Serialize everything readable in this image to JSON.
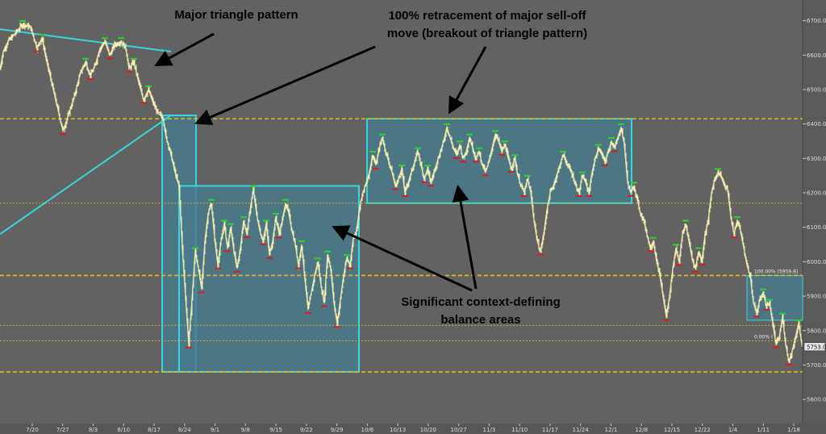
{
  "chart_data": {
    "type": "bar",
    "style": "ohlc-price-chart",
    "title": "",
    "xlabel": "",
    "ylabel": "",
    "ylim": [
      5530,
      6760
    ],
    "y_ticks": [
      5600,
      5700,
      5800,
      5900,
      6000,
      6100,
      6200,
      6300,
      6400,
      6500,
      6600,
      6700
    ],
    "y_tick_labels": [
      "5600.0",
      "5700.0",
      "5800.0",
      "5900.0",
      "6000.0",
      "6100.0",
      "6200.0",
      "6300.0",
      "6400.0",
      "6500.0",
      "6600.0",
      "6700.0"
    ],
    "x_tick_labels": [
      "7/20",
      "7/27",
      "8/3",
      "8/10",
      "8/17",
      "8/24",
      "9/1",
      "9/8",
      "9/15",
      "9/22",
      "9/29",
      "10/6",
      "10/13",
      "10/20",
      "10/27",
      "11/3",
      "11/10",
      "11/17",
      "11/24",
      "12/1",
      "12/8",
      "12/15",
      "12/22",
      "1/4",
      "1/11",
      "1/18"
    ],
    "price_path": [
      [
        0,
        6560
      ],
      [
        4,
        6610
      ],
      [
        10,
        6640
      ],
      [
        18,
        6660
      ],
      [
        28,
        6690
      ],
      [
        38,
        6680
      ],
      [
        46,
        6620
      ],
      [
        52,
        6650
      ],
      [
        58,
        6580
      ],
      [
        64,
        6520
      ],
      [
        70,
        6460
      ],
      [
        78,
        6380
      ],
      [
        84,
        6420
      ],
      [
        92,
        6480
      ],
      [
        100,
        6550
      ],
      [
        106,
        6580
      ],
      [
        112,
        6540
      ],
      [
        118,
        6570
      ],
      [
        124,
        6620
      ],
      [
        130,
        6640
      ],
      [
        136,
        6600
      ],
      [
        142,
        6630
      ],
      [
        150,
        6640
      ],
      [
        156,
        6620
      ],
      [
        160,
        6560
      ],
      [
        166,
        6580
      ],
      [
        172,
        6520
      ],
      [
        178,
        6470
      ],
      [
        184,
        6500
      ],
      [
        190,
        6460
      ],
      [
        196,
        6430
      ],
      [
        202,
        6420
      ],
      [
        206,
        6360
      ],
      [
        210,
        6330
      ],
      [
        214,
        6290
      ],
      [
        218,
        6250
      ],
      [
        222,
        6220
      ],
      [
        226,
        6040
      ],
      [
        230,
        5900
      ],
      [
        234,
        5760
      ],
      [
        238,
        5890
      ],
      [
        242,
        6030
      ],
      [
        246,
        5980
      ],
      [
        250,
        5920
      ],
      [
        254,
        6060
      ],
      [
        258,
        6140
      ],
      [
        262,
        6170
      ],
      [
        266,
        6070
      ],
      [
        270,
        5990
      ],
      [
        274,
        6060
      ],
      [
        278,
        6110
      ],
      [
        282,
        6040
      ],
      [
        286,
        6100
      ],
      [
        290,
        6030
      ],
      [
        294,
        5980
      ],
      [
        298,
        6040
      ],
      [
        302,
        6120
      ],
      [
        306,
        6080
      ],
      [
        310,
        6150
      ],
      [
        314,
        6210
      ],
      [
        318,
        6140
      ],
      [
        322,
        6090
      ],
      [
        326,
        6060
      ],
      [
        330,
        6110
      ],
      [
        334,
        6020
      ],
      [
        338,
        6060
      ],
      [
        342,
        6130
      ],
      [
        346,
        6080
      ],
      [
        350,
        6120
      ],
      [
        354,
        6170
      ],
      [
        358,
        6140
      ],
      [
        362,
        6090
      ],
      [
        366,
        6050
      ],
      [
        370,
        5990
      ],
      [
        374,
        6050
      ],
      [
        378,
        5950
      ],
      [
        382,
        5860
      ],
      [
        386,
        5910
      ],
      [
        390,
        5960
      ],
      [
        394,
        6000
      ],
      [
        398,
        5930
      ],
      [
        402,
        5880
      ],
      [
        406,
        6020
      ],
      [
        410,
        5980
      ],
      [
        414,
        5880
      ],
      [
        418,
        5820
      ],
      [
        422,
        5890
      ],
      [
        426,
        5960
      ],
      [
        430,
        6010
      ],
      [
        434,
        5990
      ],
      [
        438,
        6070
      ],
      [
        442,
        6090
      ],
      [
        446,
        6160
      ],
      [
        450,
        6200
      ],
      [
        454,
        6230
      ],
      [
        458,
        6260
      ],
      [
        462,
        6310
      ],
      [
        466,
        6280
      ],
      [
        470,
        6330
      ],
      [
        474,
        6360
      ],
      [
        478,
        6320
      ],
      [
        482,
        6290
      ],
      [
        486,
        6260
      ],
      [
        490,
        6220
      ],
      [
        494,
        6240
      ],
      [
        498,
        6270
      ],
      [
        502,
        6200
      ],
      [
        506,
        6230
      ],
      [
        510,
        6260
      ],
      [
        514,
        6290
      ],
      [
        518,
        6320
      ],
      [
        522,
        6280
      ],
      [
        526,
        6240
      ],
      [
        530,
        6270
      ],
      [
        534,
        6230
      ],
      [
        538,
        6260
      ],
      [
        542,
        6290
      ],
      [
        546,
        6320
      ],
      [
        550,
        6350
      ],
      [
        554,
        6390
      ],
      [
        558,
        6360
      ],
      [
        562,
        6330
      ],
      [
        566,
        6310
      ],
      [
        570,
        6340
      ],
      [
        574,
        6300
      ],
      [
        578,
        6320
      ],
      [
        582,
        6360
      ],
      [
        586,
        6330
      ],
      [
        590,
        6300
      ],
      [
        594,
        6320
      ],
      [
        598,
        6280
      ],
      [
        602,
        6260
      ],
      [
        606,
        6290
      ],
      [
        610,
        6330
      ],
      [
        614,
        6370
      ],
      [
        618,
        6350
      ],
      [
        622,
        6320
      ],
      [
        626,
        6340
      ],
      [
        630,
        6300
      ],
      [
        634,
        6270
      ],
      [
        638,
        6300
      ],
      [
        642,
        6250
      ],
      [
        646,
        6220
      ],
      [
        650,
        6200
      ],
      [
        654,
        6240
      ],
      [
        658,
        6200
      ],
      [
        662,
        6120
      ],
      [
        666,
        6060
      ],
      [
        670,
        6030
      ],
      [
        674,
        6080
      ],
      [
        678,
        6150
      ],
      [
        682,
        6200
      ],
      [
        686,
        6220
      ],
      [
        690,
        6250
      ],
      [
        694,
        6280
      ],
      [
        698,
        6310
      ],
      [
        702,
        6290
      ],
      [
        706,
        6270
      ],
      [
        710,
        6250
      ],
      [
        714,
        6220
      ],
      [
        718,
        6200
      ],
      [
        722,
        6250
      ],
      [
        726,
        6230
      ],
      [
        730,
        6200
      ],
      [
        734,
        6260
      ],
      [
        738,
        6300
      ],
      [
        742,
        6330
      ],
      [
        746,
        6310
      ],
      [
        750,
        6290
      ],
      [
        754,
        6320
      ],
      [
        758,
        6350
      ],
      [
        762,
        6330
      ],
      [
        766,
        6360
      ],
      [
        770,
        6390
      ],
      [
        774,
        6340
      ],
      [
        778,
        6230
      ],
      [
        782,
        6200
      ],
      [
        786,
        6220
      ],
      [
        790,
        6180
      ],
      [
        794,
        6140
      ],
      [
        798,
        6120
      ],
      [
        802,
        6080
      ],
      [
        806,
        6040
      ],
      [
        810,
        6060
      ],
      [
        814,
        6000
      ],
      [
        818,
        5960
      ],
      [
        822,
        5900
      ],
      [
        826,
        5840
      ],
      [
        830,
        5900
      ],
      [
        834,
        5980
      ],
      [
        838,
        6040
      ],
      [
        842,
        6000
      ],
      [
        846,
        6080
      ],
      [
        850,
        6110
      ],
      [
        854,
        6060
      ],
      [
        858,
        6010
      ],
      [
        862,
        5980
      ],
      [
        866,
        6030
      ],
      [
        870,
        6000
      ],
      [
        874,
        6080
      ],
      [
        878,
        6120
      ],
      [
        882,
        6200
      ],
      [
        886,
        6240
      ],
      [
        890,
        6260
      ],
      [
        894,
        6250
      ],
      [
        898,
        6220
      ],
      [
        902,
        6210
      ],
      [
        906,
        6130
      ],
      [
        910,
        6080
      ],
      [
        914,
        6120
      ],
      [
        918,
        6090
      ],
      [
        922,
        6040
      ],
      [
        926,
        5990
      ],
      [
        930,
        5960
      ],
      [
        934,
        5880
      ],
      [
        938,
        5850
      ],
      [
        942,
        5890
      ],
      [
        946,
        5910
      ],
      [
        950,
        5870
      ],
      [
        954,
        5880
      ],
      [
        958,
        5820
      ],
      [
        962,
        5760
      ],
      [
        966,
        5780
      ],
      [
        970,
        5840
      ],
      [
        974,
        5760
      ],
      [
        978,
        5710
      ],
      [
        982,
        5740
      ],
      [
        986,
        5780
      ],
      [
        990,
        5820
      ],
      [
        994,
        5760
      ]
    ],
    "trendlines": [
      {
        "from": [
          0,
          6675
        ],
        "to": [
          212,
          6610
        ]
      },
      {
        "from": [
          0,
          6080
        ],
        "to": [
          212,
          6425
        ]
      }
    ],
    "zones": [
      {
        "x0": 201,
        "x1": 243,
        "y_top": 6425,
        "y_bottom": 5680
      },
      {
        "x0": 222,
        "x1": 445,
        "y_top": 6220,
        "y_bottom": 5680
      },
      {
        "x0": 455,
        "x1": 783,
        "y_top": 6415,
        "y_bottom": 6170
      },
      {
        "x0": 926,
        "x1": 995,
        "y_top": 5960,
        "y_bottom": 5830
      }
    ],
    "levels": [
      {
        "y": 6415,
        "style": "dashed-major"
      },
      {
        "y": 6170,
        "style": "dotted"
      },
      {
        "y": 5960,
        "style": "dashed-major"
      },
      {
        "y": 5815,
        "style": "dotted"
      },
      {
        "y": 5770,
        "style": "dotted"
      },
      {
        "y": 5680,
        "style": "dashed-major"
      }
    ],
    "level_labels": {
      "top": "100.00% (5959.8)",
      "bottom": "0.00% (",
      "current": "5753.0"
    },
    "annotations": {
      "triangle": "Major triangle pattern",
      "retracement_1": "100% retracement of major sell-off",
      "retracement_2": "move (breakout of triangle pattern)",
      "balance_1": "Significant context-defining",
      "balance_2": "balance areas"
    },
    "grid": false,
    "legend": "none"
  },
  "colors": {
    "background": "#626262",
    "price": "#f5efb0",
    "zone_fill": "#4a7a8c",
    "zone_stroke": "#35d6e0",
    "trendline": "#35d6e0",
    "level": "#e8b91a",
    "up_marker": "#2bd62b",
    "down_marker": "#e01a1a",
    "arrow": "#000000"
  }
}
